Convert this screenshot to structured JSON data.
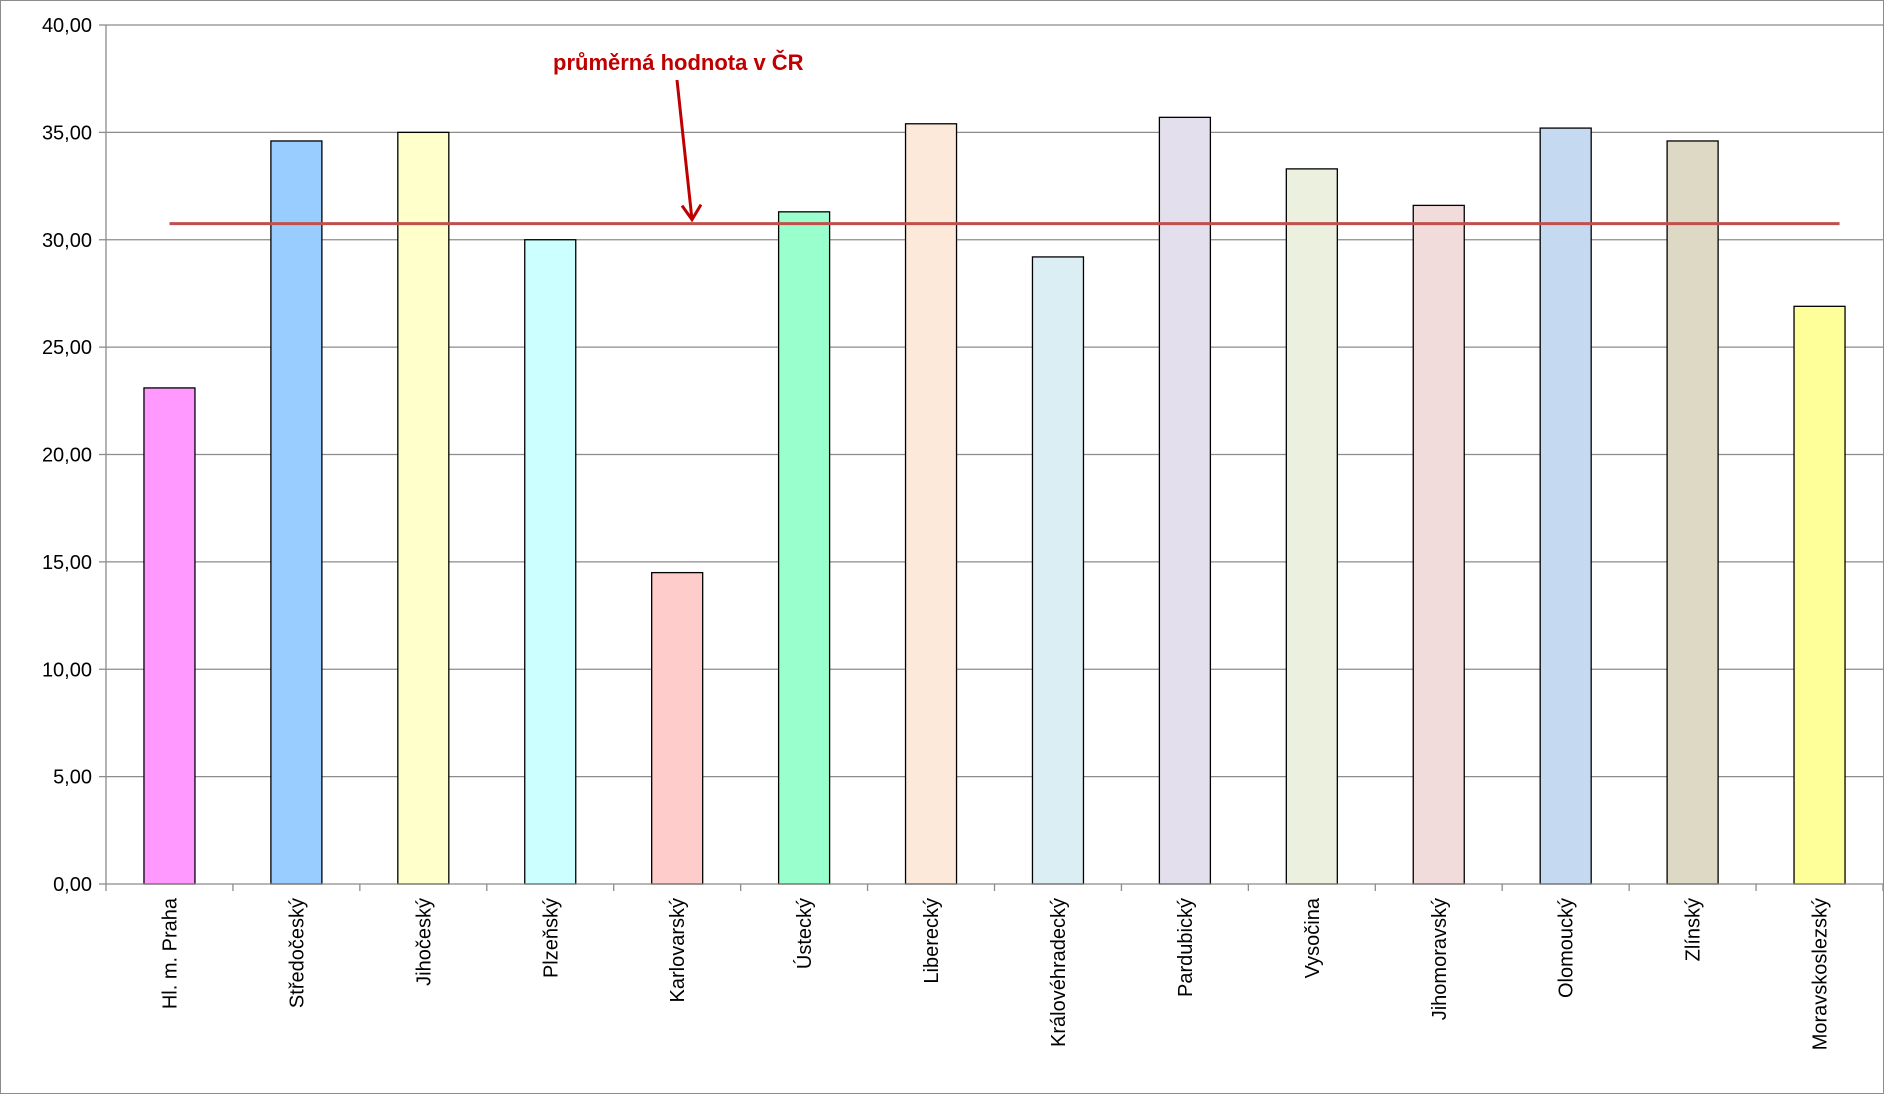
{
  "chart_data": {
    "type": "bar",
    "categories": [
      "Hl. m. Praha",
      "Středočeský",
      "Jihočeský",
      "Plzeňský",
      "Karlovarský",
      "Ústecký",
      "Liberecký",
      "Královéhradecký",
      "Pardubický",
      "Vysočina",
      "Jihomoravský",
      "Olomoucký",
      "Zlínský",
      "Moravskoslezský"
    ],
    "values": [
      23.1,
      34.6,
      35.0,
      30.0,
      14.5,
      31.3,
      35.4,
      29.2,
      35.7,
      33.3,
      31.6,
      35.2,
      34.6,
      26.9
    ],
    "bar_colors": [
      "#ff99ff",
      "#99ccff",
      "#ffffcc",
      "#ccffff",
      "#ffcccc",
      "#99ffcc",
      "#fde9d9",
      "#daeef3",
      "#e4dfec",
      "#ebf1de",
      "#f2dcdb",
      "#c5d9f1",
      "#ddd9c4",
      "#ffff99"
    ],
    "ylim": [
      0,
      40
    ],
    "yticks": [
      "0,00",
      "5,00",
      "10,00",
      "15,00",
      "20,00",
      "25,00",
      "30,00",
      "35,00",
      "40,00"
    ],
    "grid": true,
    "reference_line": {
      "value": 30.75,
      "color": "#c0504d"
    },
    "annotation": {
      "text": "průměrná hodnota v ČR",
      "color": "#c00000"
    }
  }
}
